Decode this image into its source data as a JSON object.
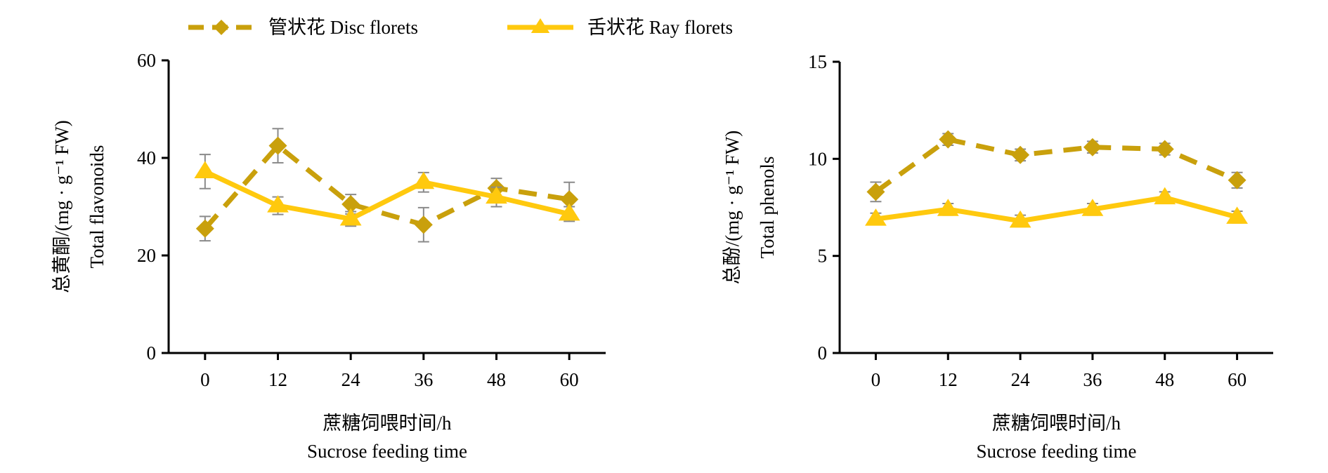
{
  "legend": {
    "position": "top-left",
    "entries": [
      {
        "label": "管状花 Disc florets",
        "color": "#C9A00C",
        "marker": "diamond",
        "dashed": true
      },
      {
        "label": "舌状花 Ray florets",
        "color": "#FFC90E",
        "marker": "triangle",
        "dashed": false
      }
    ]
  },
  "chart_data": [
    {
      "type": "line",
      "x": [
        0,
        12,
        24,
        36,
        48,
        60
      ],
      "xlim": [
        -6,
        66
      ],
      "ylim": [
        0,
        60
      ],
      "yticks": [
        0,
        20,
        40,
        60
      ],
      "xlabel_cn": "蔗糖饲喂时间/h",
      "xlabel_en": "Sucrose feeding time",
      "ylabel_cn": "总黄酮/(mg · g⁻¹ FW)",
      "ylabel_en": "Total flavonoids",
      "grid": false,
      "series": [
        {
          "name": "管状花 Disc florets",
          "values": [
            25.5,
            42.5,
            30.5,
            26.3,
            33.8,
            31.5
          ],
          "errors": [
            2.5,
            3.5,
            2.0,
            3.5,
            2.0,
            3.5
          ]
        },
        {
          "name": "舌状花 Ray florets",
          "values": [
            37.2,
            30.2,
            27.5,
            35.0,
            32.0,
            28.5
          ],
          "errors": [
            3.5,
            1.8,
            1.5,
            2.0,
            2.0,
            1.5
          ]
        }
      ]
    },
    {
      "type": "line",
      "x": [
        0,
        12,
        24,
        36,
        48,
        60
      ],
      "xlim": [
        -6,
        66
      ],
      "ylim": [
        0,
        15
      ],
      "yticks": [
        0,
        5,
        10,
        15
      ],
      "xlabel_cn": "蔗糖饲喂时间/h",
      "xlabel_en": "Sucrose feeding time",
      "ylabel_cn": "总酚/(mg · g⁻¹ FW)",
      "ylabel_en": "Total phenols",
      "grid": false,
      "series": [
        {
          "name": "管状花 Disc florets",
          "values": [
            8.3,
            11.0,
            10.2,
            10.6,
            10.5,
            8.9
          ],
          "errors": [
            0.5,
            0.3,
            0.3,
            0.3,
            0.3,
            0.4
          ]
        },
        {
          "name": "舌状花 Ray florets",
          "values": [
            6.9,
            7.4,
            6.8,
            7.4,
            8.0,
            7.0
          ],
          "errors": [
            0.3,
            0.3,
            0.3,
            0.3,
            0.3,
            0.3
          ]
        }
      ]
    }
  ]
}
